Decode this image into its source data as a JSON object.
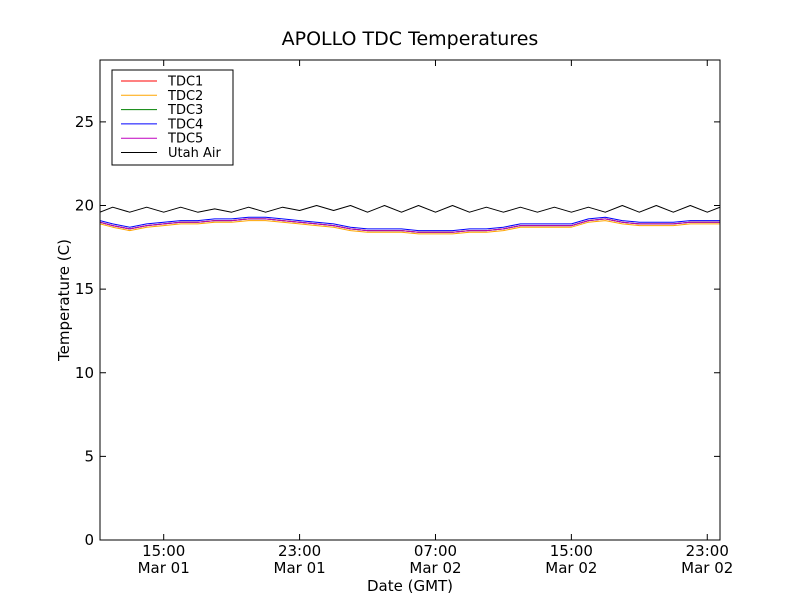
{
  "chart_data": {
    "type": "line",
    "title": "APOLLO TDC Temperatures",
    "xlabel": "Date (GMT)",
    "ylabel": "Temperature (C)",
    "xlim": [
      "2011-03-01 11:15",
      "2011-03-02 23:45"
    ],
    "ylim": [
      0,
      28.7
    ],
    "grid": false,
    "legend_position": "top-left",
    "x_ticks": [
      {
        "value": "2011-03-01 15:00",
        "time": "15:00",
        "date": "Mar 01"
      },
      {
        "value": "2011-03-01 23:00",
        "time": "23:00",
        "date": "Mar 01"
      },
      {
        "value": "2011-03-02 07:00",
        "time": "07:00",
        "date": "Mar 02"
      },
      {
        "value": "2011-03-02 15:00",
        "time": "15:00",
        "date": "Mar 02"
      },
      {
        "value": "2011-03-02 23:00",
        "time": "23:00",
        "date": "Mar 02"
      }
    ],
    "y_ticks": [
      "0",
      "5",
      "10",
      "15",
      "20",
      "25"
    ],
    "x": [
      "2011-03-01 11:15",
      "2011-03-01 12:00",
      "2011-03-01 13:00",
      "2011-03-01 14:00",
      "2011-03-01 15:00",
      "2011-03-01 16:00",
      "2011-03-01 17:00",
      "2011-03-01 18:00",
      "2011-03-01 19:00",
      "2011-03-01 20:00",
      "2011-03-01 21:00",
      "2011-03-01 22:00",
      "2011-03-01 23:00",
      "2011-03-02 00:00",
      "2011-03-02 01:00",
      "2011-03-02 02:00",
      "2011-03-02 03:00",
      "2011-03-02 04:00",
      "2011-03-02 05:00",
      "2011-03-02 06:00",
      "2011-03-02 07:00",
      "2011-03-02 08:00",
      "2011-03-02 09:00",
      "2011-03-02 10:00",
      "2011-03-02 11:00",
      "2011-03-02 12:00",
      "2011-03-02 13:00",
      "2011-03-02 14:00",
      "2011-03-02 15:00",
      "2011-03-02 16:00",
      "2011-03-02 17:00",
      "2011-03-02 18:00",
      "2011-03-02 19:00",
      "2011-03-02 20:00",
      "2011-03-02 21:00",
      "2011-03-02 22:00",
      "2011-03-02 23:00",
      "2011-03-02 23:45"
    ],
    "series": [
      {
        "name": "TDC1",
        "color": "#ff0000",
        "values": [
          19.0,
          18.8,
          18.6,
          18.8,
          18.9,
          19.0,
          19.0,
          19.1,
          19.1,
          19.2,
          19.2,
          19.1,
          19.0,
          18.9,
          18.8,
          18.6,
          18.5,
          18.5,
          18.5,
          18.4,
          18.4,
          18.4,
          18.5,
          18.5,
          18.6,
          18.8,
          18.8,
          18.8,
          18.8,
          19.1,
          19.2,
          19.0,
          18.9,
          18.9,
          18.9,
          19.0,
          19.0,
          19.0
        ]
      },
      {
        "name": "TDC2",
        "color": "#ffa500",
        "values": [
          18.9,
          18.7,
          18.5,
          18.7,
          18.8,
          18.9,
          18.9,
          19.0,
          19.0,
          19.1,
          19.1,
          19.0,
          18.9,
          18.8,
          18.7,
          18.5,
          18.4,
          18.4,
          18.4,
          18.3,
          18.3,
          18.3,
          18.4,
          18.4,
          18.5,
          18.7,
          18.7,
          18.7,
          18.7,
          19.0,
          19.1,
          18.9,
          18.8,
          18.8,
          18.8,
          18.9,
          18.9,
          18.9
        ]
      },
      {
        "name": "TDC3",
        "color": "#008000",
        "values": [
          19.0,
          18.8,
          18.6,
          18.8,
          18.9,
          19.0,
          19.0,
          19.1,
          19.1,
          19.2,
          19.2,
          19.1,
          19.0,
          18.9,
          18.8,
          18.6,
          18.5,
          18.5,
          18.5,
          18.4,
          18.4,
          18.4,
          18.5,
          18.5,
          18.6,
          18.8,
          18.8,
          18.8,
          18.8,
          19.1,
          19.2,
          19.0,
          18.9,
          18.9,
          18.9,
          19.0,
          19.0,
          19.0
        ]
      },
      {
        "name": "TDC4",
        "color": "#0000ff",
        "values": [
          19.1,
          18.9,
          18.7,
          18.9,
          19.0,
          19.1,
          19.1,
          19.2,
          19.2,
          19.3,
          19.3,
          19.2,
          19.1,
          19.0,
          18.9,
          18.7,
          18.6,
          18.6,
          18.6,
          18.5,
          18.5,
          18.5,
          18.6,
          18.6,
          18.7,
          18.9,
          18.9,
          18.9,
          18.9,
          19.2,
          19.3,
          19.1,
          19.0,
          19.0,
          19.0,
          19.1,
          19.1,
          19.1
        ]
      },
      {
        "name": "TDC5",
        "color": "#bf00bf",
        "values": [
          19.0,
          18.8,
          18.6,
          18.8,
          18.9,
          19.0,
          19.0,
          19.1,
          19.1,
          19.2,
          19.2,
          19.1,
          19.0,
          18.9,
          18.8,
          18.6,
          18.5,
          18.5,
          18.5,
          18.4,
          18.4,
          18.4,
          18.5,
          18.5,
          18.6,
          18.8,
          18.8,
          18.8,
          18.8,
          19.1,
          19.2,
          19.0,
          18.9,
          18.9,
          18.9,
          19.0,
          19.0,
          19.0
        ]
      },
      {
        "name": "Utah Air",
        "color": "#000000",
        "values": [
          19.6,
          19.9,
          19.6,
          19.9,
          19.6,
          19.9,
          19.6,
          19.8,
          19.6,
          19.9,
          19.6,
          19.9,
          19.7,
          20.0,
          19.7,
          20.0,
          19.6,
          20.0,
          19.6,
          20.0,
          19.6,
          20.0,
          19.6,
          19.9,
          19.6,
          19.9,
          19.6,
          19.9,
          19.6,
          19.9,
          19.6,
          20.0,
          19.6,
          20.0,
          19.6,
          20.0,
          19.6,
          19.9
        ]
      }
    ]
  }
}
